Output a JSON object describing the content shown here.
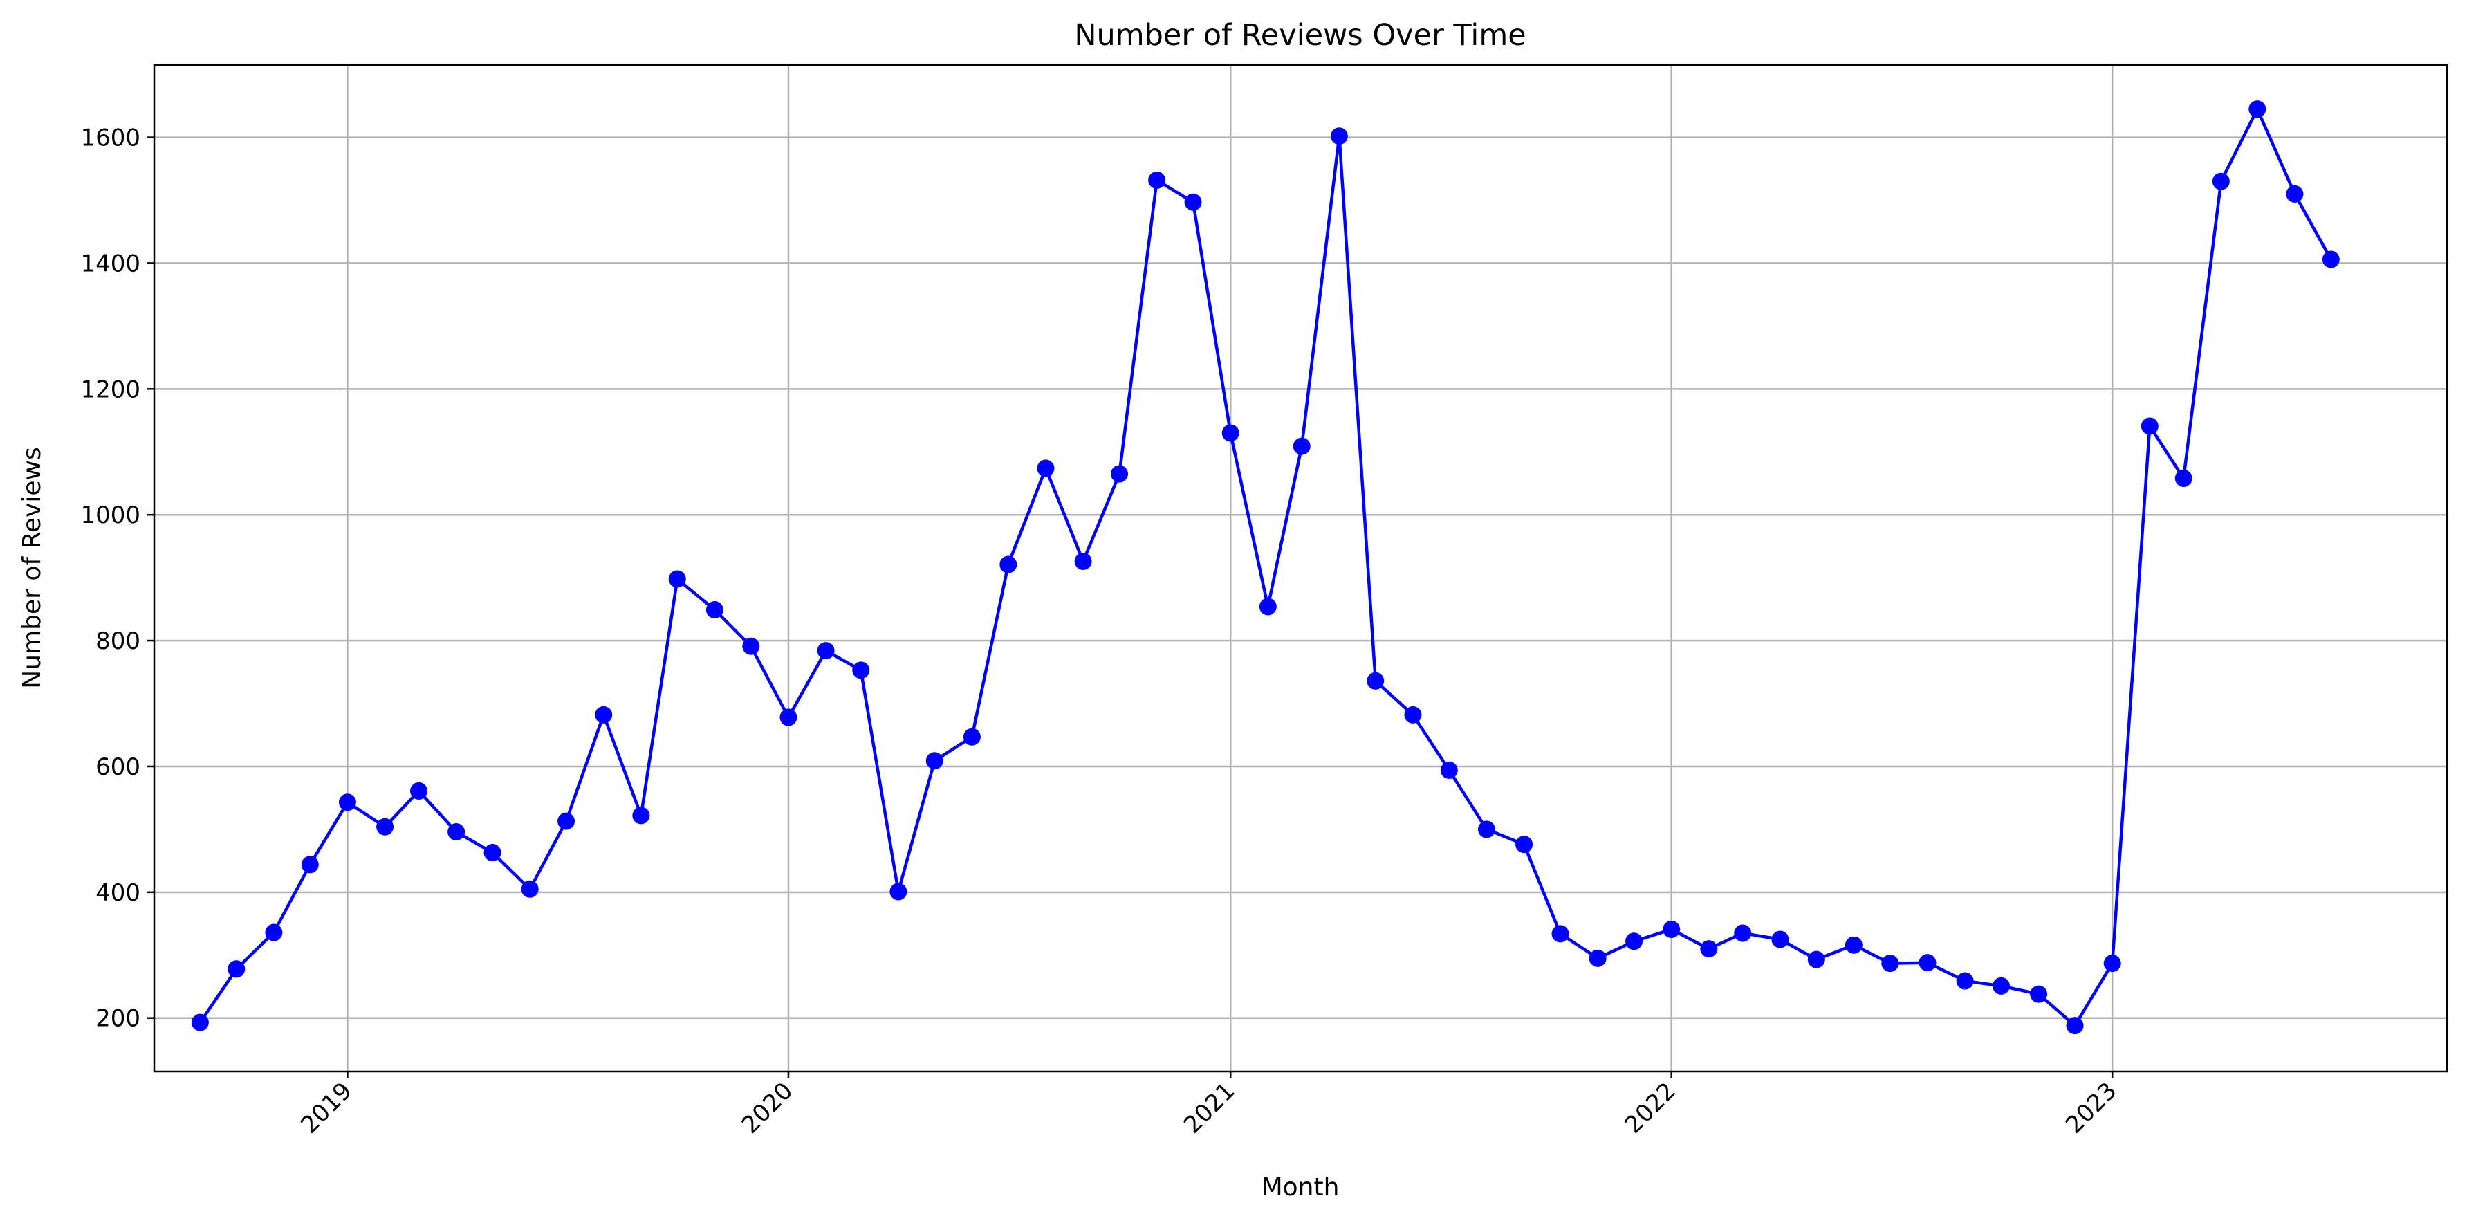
{
  "chart_data": {
    "type": "line",
    "title": "Number of Reviews Over Time",
    "xlabel": "Month",
    "ylabel": "Number of Reviews",
    "x_range": [
      "2018-07-25",
      "2023-10-05"
    ],
    "ylim": [
      115,
      1715
    ],
    "y_ticks": [
      200,
      400,
      600,
      800,
      1000,
      1200,
      1400,
      1600
    ],
    "x_ticks": [
      {
        "date": "2019-01-01",
        "label": "2019"
      },
      {
        "date": "2020-01-01",
        "label": "2020"
      },
      {
        "date": "2021-01-01",
        "label": "2021"
      },
      {
        "date": "2022-01-01",
        "label": "2022"
      },
      {
        "date": "2023-01-01",
        "label": "2023"
      }
    ],
    "x_tick_rotation": 45,
    "grid": true,
    "color": "#0000ff",
    "marker": "circle",
    "series": [
      {
        "x": [
          "2018-09-01",
          "2018-10-01",
          "2018-11-01",
          "2018-12-01",
          "2019-01-01",
          "2019-02-01",
          "2019-03-01",
          "2019-04-01",
          "2019-05-01",
          "2019-06-01",
          "2019-07-01",
          "2019-08-01",
          "2019-09-01",
          "2019-10-01",
          "2019-11-01",
          "2019-12-01",
          "2020-01-01",
          "2020-02-01",
          "2020-03-01",
          "2020-04-01",
          "2020-05-01",
          "2020-06-01",
          "2020-07-01",
          "2020-08-01",
          "2020-09-01",
          "2020-10-01",
          "2020-11-01",
          "2020-12-01",
          "2021-01-01",
          "2021-02-01",
          "2021-03-01",
          "2021-04-01",
          "2021-05-01",
          "2021-06-01",
          "2021-07-01",
          "2021-08-01",
          "2021-09-01",
          "2021-10-01",
          "2021-11-01",
          "2021-12-01",
          "2022-01-01",
          "2022-02-01",
          "2022-03-01",
          "2022-04-01",
          "2022-05-01",
          "2022-06-01",
          "2022-07-01",
          "2022-08-01",
          "2022-09-01",
          "2022-10-01",
          "2022-11-01",
          "2022-12-01",
          "2023-01-01",
          "2023-02-01",
          "2023-03-01",
          "2023-04-01",
          "2023-05-01",
          "2023-06-01",
          "2023-07-01"
        ],
        "y": [
          193,
          278,
          336,
          444,
          543,
          504,
          561,
          496,
          463,
          405,
          513,
          682,
          522,
          898,
          849,
          791,
          678,
          784,
          753,
          401,
          609,
          647,
          921,
          1074,
          926,
          1065,
          1532,
          1497,
          1130,
          854,
          1109,
          1602,
          736,
          682,
          594,
          500,
          476,
          334,
          295,
          322,
          341,
          310,
          335,
          325,
          293,
          316,
          287,
          288,
          259,
          251,
          238,
          188,
          287,
          1141,
          1058,
          1530,
          1645,
          1510,
          1406
        ]
      }
    ]
  }
}
